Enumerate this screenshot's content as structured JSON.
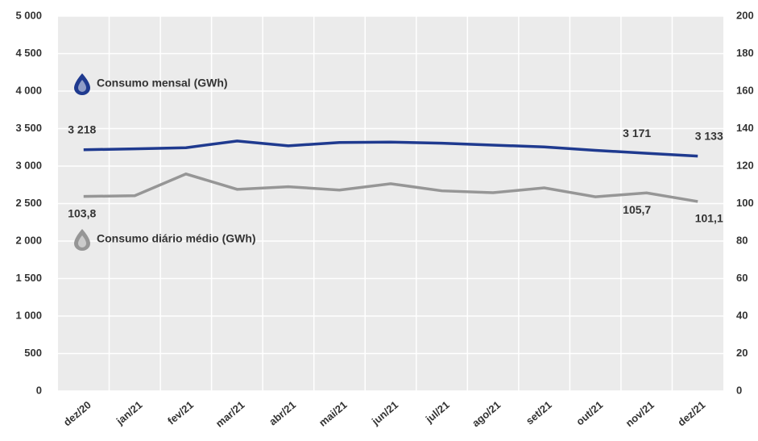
{
  "chart_data": {
    "type": "line",
    "categories": [
      "dez/20",
      "jan/21",
      "fev/21",
      "mar/21",
      "abr/21",
      "mai/21",
      "jun/21",
      "jul/21",
      "ago/21",
      "set/21",
      "out/21",
      "nov/21",
      "dez/21"
    ],
    "series": [
      {
        "name": "Consumo mensal (GWh)",
        "color": "#1f3a8f",
        "values": [
          3218,
          3230,
          3245,
          3335,
          3270,
          3315,
          3320,
          3305,
          3280,
          3255,
          3210,
          3171,
          3133
        ],
        "value_labels": [
          "3 218",
          null,
          null,
          null,
          null,
          null,
          null,
          null,
          null,
          null,
          null,
          "3 171",
          "3 133"
        ]
      },
      {
        "name": "Consumo diário médio (GWh)",
        "color": "#969696",
        "axis": "y2",
        "values": [
          103.8,
          104.2,
          115.8,
          107.6,
          109.0,
          107.2,
          110.6,
          106.8,
          105.8,
          108.4,
          103.6,
          105.7,
          101.1
        ],
        "value_labels": [
          "103,8",
          null,
          null,
          null,
          null,
          null,
          null,
          null,
          null,
          null,
          null,
          "105,7",
          "101,1"
        ]
      }
    ],
    "ylim": [
      0,
      5000
    ],
    "yticks": [
      0,
      500,
      {
        "value": 1000,
        "label": "1 000"
      },
      {
        "value": 1500,
        "label": "1 500"
      },
      {
        "value": 2000,
        "label": "2 000"
      },
      {
        "value": 2500,
        "label": "2 500"
      },
      {
        "value": 3000,
        "label": "3 000"
      },
      {
        "value": 3500,
        "label": "3 500"
      },
      {
        "value": 4000,
        "label": "4 000"
      },
      {
        "value": 4500,
        "label": "4 500"
      },
      {
        "value": 5000,
        "label": "5 000"
      }
    ],
    "y2lim": [
      0,
      200
    ],
    "y2ticks": [
      0,
      20,
      40,
      60,
      80,
      100,
      120,
      140,
      160,
      180,
      200
    ],
    "grid": true
  }
}
